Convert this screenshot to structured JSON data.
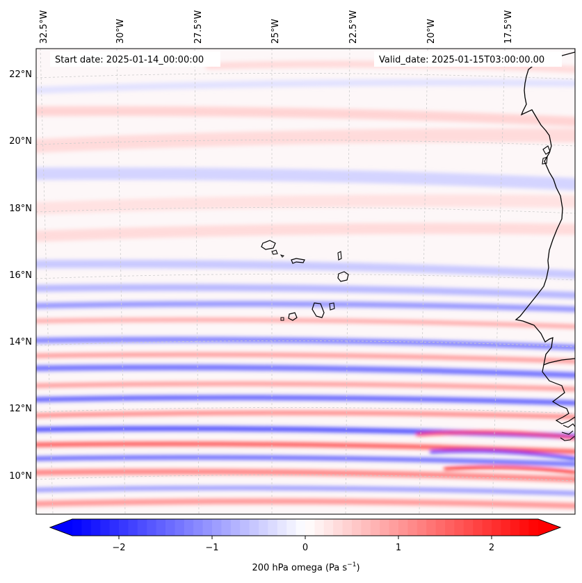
{
  "map": {
    "start_date": "Start date: 2025-01-14_00:00:00",
    "valid_date": "Valid_date: 2025-01-15T03:00:00.00",
    "lon_labels": [
      "32.5°W",
      "30°W",
      "27.5°W",
      "25°W",
      "22.5°W",
      "20°W",
      "17.5°W"
    ],
    "lat_labels": [
      "22°N",
      "20°N",
      "18°N",
      "16°N",
      "14°N",
      "12°N",
      "10°N"
    ]
  },
  "colorbar": {
    "label": "200 hPa omega (Pa s",
    "label_sup": "−1",
    "label_end": ")",
    "ticks": [
      "−2",
      "−1",
      "0",
      "1",
      "2"
    ],
    "tick_values": [
      -2,
      -1,
      0,
      1,
      2
    ],
    "range": [
      -2.5,
      2.5
    ],
    "colormap": "bwr",
    "color_min": "#0000ff",
    "color_mid": "#ffffff",
    "color_max": "#ff0000"
  },
  "colors": {
    "coastline": "#000000",
    "gridline": "#cccccc"
  }
}
